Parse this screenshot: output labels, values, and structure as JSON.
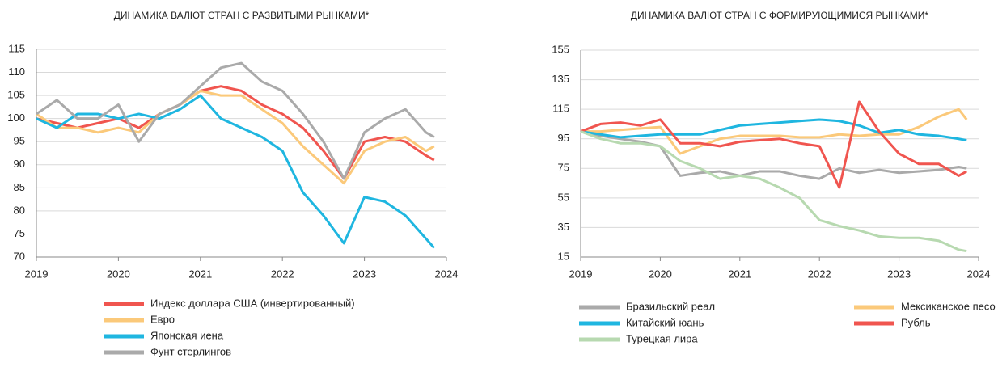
{
  "chart_data": [
    {
      "type": "line",
      "title": "ДИНАМИКА ВАЛЮТ СТРАН С РАЗВИТЫМИ РЫНКАМИ*",
      "x": [
        2019,
        2019.25,
        2019.5,
        2019.75,
        2020,
        2020.25,
        2020.5,
        2020.75,
        2021,
        2021.25,
        2021.5,
        2021.75,
        2022,
        2022.25,
        2022.5,
        2022.75,
        2023,
        2023.25,
        2023.5,
        2023.75,
        2023.85
      ],
      "xlim": [
        2019,
        2024
      ],
      "xticks": [
        2019,
        2020,
        2021,
        2022,
        2023,
        2024
      ],
      "ylim": [
        70,
        115
      ],
      "yticks": [
        70,
        75,
        80,
        85,
        90,
        95,
        100,
        105,
        110,
        115
      ],
      "grid": true,
      "series": [
        {
          "name": "Индекс доллара США (инвертированный)",
          "color": "#f0554f",
          "values": [
            100,
            99,
            98,
            99,
            100,
            98,
            101,
            103,
            106,
            107,
            106,
            103,
            101,
            98,
            93,
            87,
            95,
            96,
            95,
            92,
            91
          ]
        },
        {
          "name": "Евро",
          "color": "#fbc97a",
          "values": [
            101,
            98,
            98,
            97,
            98,
            97,
            101,
            103,
            106,
            105,
            105,
            102,
            99,
            94,
            90,
            86,
            93,
            95,
            96,
            93,
            94
          ]
        },
        {
          "name": "Японская иена",
          "color": "#1fb6e0",
          "values": [
            100,
            98,
            101,
            101,
            100,
            101,
            100,
            102,
            105,
            100,
            98,
            96,
            93,
            84,
            79,
            73,
            83,
            82,
            79,
            74,
            72
          ]
        },
        {
          "name": "Фунт стерлингов",
          "color": "#aaaaaa",
          "values": [
            101,
            104,
            100,
            100,
            103,
            95,
            101,
            103,
            107,
            111,
            112,
            108,
            106,
            101,
            95,
            87,
            97,
            100,
            102,
            97,
            96
          ]
        }
      ]
    },
    {
      "type": "line",
      "title": "ДИНАМИКА ВАЛЮТ СТРАН С ФОРМИРУЮЩИМИСЯ РЫНКАМИ*",
      "x": [
        2019,
        2019.25,
        2019.5,
        2019.75,
        2020,
        2020.25,
        2020.5,
        2020.75,
        2021,
        2021.25,
        2021.5,
        2021.75,
        2022,
        2022.25,
        2022.5,
        2022.75,
        2023,
        2023.25,
        2023.5,
        2023.75,
        2023.85
      ],
      "xlim": [
        2019,
        2024
      ],
      "xticks": [
        2019,
        2020,
        2021,
        2022,
        2023,
        2024
      ],
      "ylim": [
        15,
        155
      ],
      "yticks": [
        15,
        35,
        55,
        75,
        95,
        115,
        135,
        155
      ],
      "grid": true,
      "series": [
        {
          "name": "Бразильский реал",
          "color": "#aaaaaa",
          "values": [
            100,
            97,
            95,
            93,
            90,
            70,
            72,
            73,
            70,
            73,
            73,
            70,
            68,
            75,
            72,
            74,
            72,
            73,
            74,
            76,
            75
          ]
        },
        {
          "name": "Мексиканское песо",
          "color": "#fbc97a",
          "values": [
            100,
            100,
            101,
            102,
            103,
            85,
            90,
            95,
            97,
            97,
            97,
            96,
            96,
            98,
            97,
            98,
            98,
            103,
            110,
            115,
            108
          ]
        },
        {
          "name": "Китайский юань",
          "color": "#1fb6e0",
          "values": [
            100,
            98,
            96,
            97,
            98,
            98,
            98,
            101,
            104,
            105,
            106,
            107,
            108,
            107,
            104,
            99,
            101,
            98,
            97,
            95,
            94
          ]
        },
        {
          "name": "Рубль",
          "color": "#f0554f",
          "values": [
            100,
            105,
            106,
            104,
            108,
            92,
            92,
            90,
            93,
            94,
            95,
            92,
            90,
            62,
            120,
            100,
            85,
            78,
            78,
            70,
            73
          ]
        },
        {
          "name": "Турецкая лира",
          "color": "#b7d9b0",
          "values": [
            100,
            95,
            92,
            92,
            90,
            80,
            75,
            68,
            70,
            68,
            62,
            55,
            40,
            36,
            33,
            29,
            28,
            28,
            26,
            20,
            19
          ]
        }
      ]
    }
  ]
}
